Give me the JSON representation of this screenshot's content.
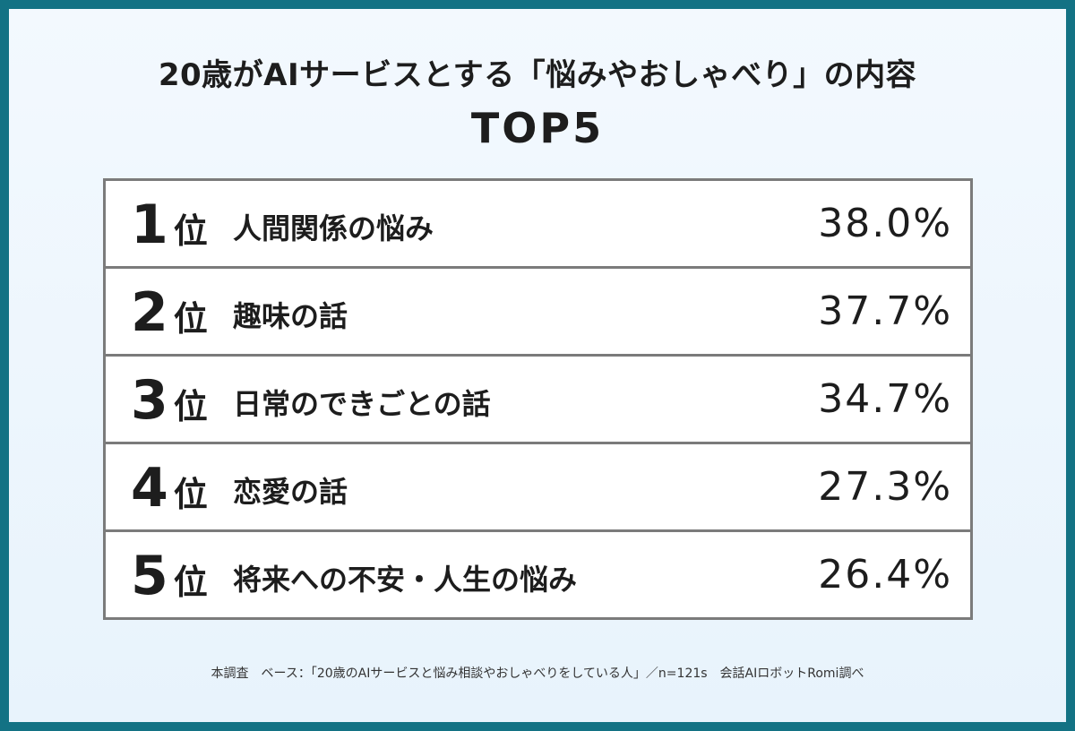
{
  "title": "20歳がAIサービスとする「悩みやおしゃべり」の内容",
  "subtitle": "TOP5",
  "rank_suffix": "位",
  "rows": [
    {
      "rank": "1",
      "label": "人間関係の悩み",
      "value": "38.0%"
    },
    {
      "rank": "2",
      "label": "趣味の話",
      "value": "37.7%"
    },
    {
      "rank": "3",
      "label": "日常のできごとの話",
      "value": "34.7%"
    },
    {
      "rank": "4",
      "label": "恋愛の話",
      "value": "27.3%"
    },
    {
      "rank": "5",
      "label": "将来への不安・人生の悩み",
      "value": "26.4%"
    }
  ],
  "note": "本調査　ベース：「20歳のAIサービスと悩み相談やおしゃべりをしている人」／n=121s　会話AIロボットRomi調べ",
  "colors": {
    "frame": "#137284",
    "background": "#eef6fd",
    "border": "#7b7b7b",
    "text": "#1d1d1d"
  },
  "chart_data": {
    "type": "table",
    "title": "20歳がAIサービスとする「悩みやおしゃべり」の内容",
    "subtitle": "TOP5",
    "categories": [
      "人間関係の悩み",
      "趣味の話",
      "日常のできごとの話",
      "恋愛の話",
      "将来への不安・人生の悩み"
    ],
    "values": [
      38.0,
      37.7,
      34.7,
      27.3,
      26.4
    ],
    "unit": "%"
  }
}
